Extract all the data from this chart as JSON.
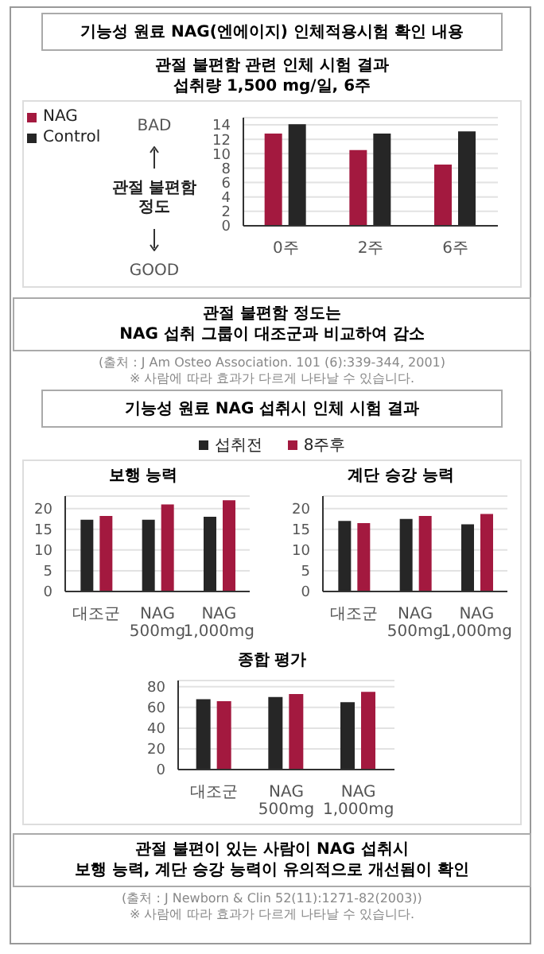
{
  "chart_data": [
    {
      "type": "bar",
      "title": "관절 불편함 관련 인체 시험 결과",
      "subtitle": "섭취량 1,500 mg/일, 6주",
      "ylabel": "관절 불편함 정도",
      "categories": [
        "0주",
        "2주",
        "6주"
      ],
      "series": [
        {
          "name": "NAG",
          "color": "#a3193f",
          "values": [
            12.8,
            10.5,
            8.5
          ]
        },
        {
          "name": "Control",
          "color": "#262626",
          "values": [
            14.1,
            12.8,
            13.1
          ]
        }
      ],
      "ylim": [
        0,
        15
      ],
      "yticks": [
        0,
        2,
        4,
        6,
        8,
        10,
        12,
        14
      ],
      "grid": "y",
      "legend": "top left",
      "annotations": [
        "기능성 원료 NAG(엔에이지) 인체적용시험 확인 내용",
        "BAD",
        "GOOD",
        "관절 불편함 정도는\nNAG 섭취 그룹이 대조군과 비교하여 감소",
        "(출처 : J Am Osteo Association. 101 (6):339-344, 2001)",
        "※ 사람에 따라 효과가 다르게 나타날 수 있습니다."
      ]
    },
    {
      "type": "bar",
      "title": "보행 능력",
      "categories": [
        "대조군",
        "NAG 500mg",
        "NAG 1,000mg"
      ],
      "series": [
        {
          "name": "섭취전",
          "color": "#262626",
          "values": [
            17.3,
            17.3,
            18.0
          ]
        },
        {
          "name": "8주후",
          "color": "#a3193f",
          "values": [
            18.2,
            21.0,
            22.0
          ]
        }
      ],
      "ylim": [
        0,
        23
      ],
      "yticks": [
        0,
        5,
        10,
        15,
        20
      ],
      "grid": "y",
      "legend": "top",
      "annotations": [
        "기능성 원료 NAG 섭취시 인체 시험 결과"
      ]
    },
    {
      "type": "bar",
      "title": "계단 승강 능력",
      "categories": [
        "대조군",
        "NAG 500mg",
        "NAG 1,000mg"
      ],
      "series": [
        {
          "color": "#262626",
          "values": [
            17.0,
            17.5,
            16.2
          ]
        },
        {
          "color": "#a3193f",
          "values": [
            16.5,
            18.2,
            18.7
          ]
        }
      ],
      "ylim": [
        0,
        23
      ],
      "yticks": [
        0,
        5,
        10,
        15,
        20
      ],
      "grid": "y"
    },
    {
      "type": "bar",
      "title": "종합 평가",
      "categories": [
        "대조군",
        "NAG 500mg",
        "NAG 1,000mg"
      ],
      "series": [
        {
          "color": "#262626",
          "values": [
            68,
            70,
            65
          ]
        },
        {
          "color": "#a3193f",
          "values": [
            66,
            73,
            75
          ]
        }
      ],
      "ylim": [
        0,
        86
      ],
      "yticks": [
        0,
        20,
        40,
        60,
        80
      ],
      "grid": "y",
      "annotations": [
        "관절 불편이 있는 사람이 NAG 섭취시\n보행 능력, 계단 승강 능력이 유의적으로 개선됨이 확인",
        "(출처 : J Newborn & Clin 52(11):1271-82(2003))",
        "※ 사람에 따라 효과가 다르게 나타날 수 있습니다."
      ]
    }
  ]
}
